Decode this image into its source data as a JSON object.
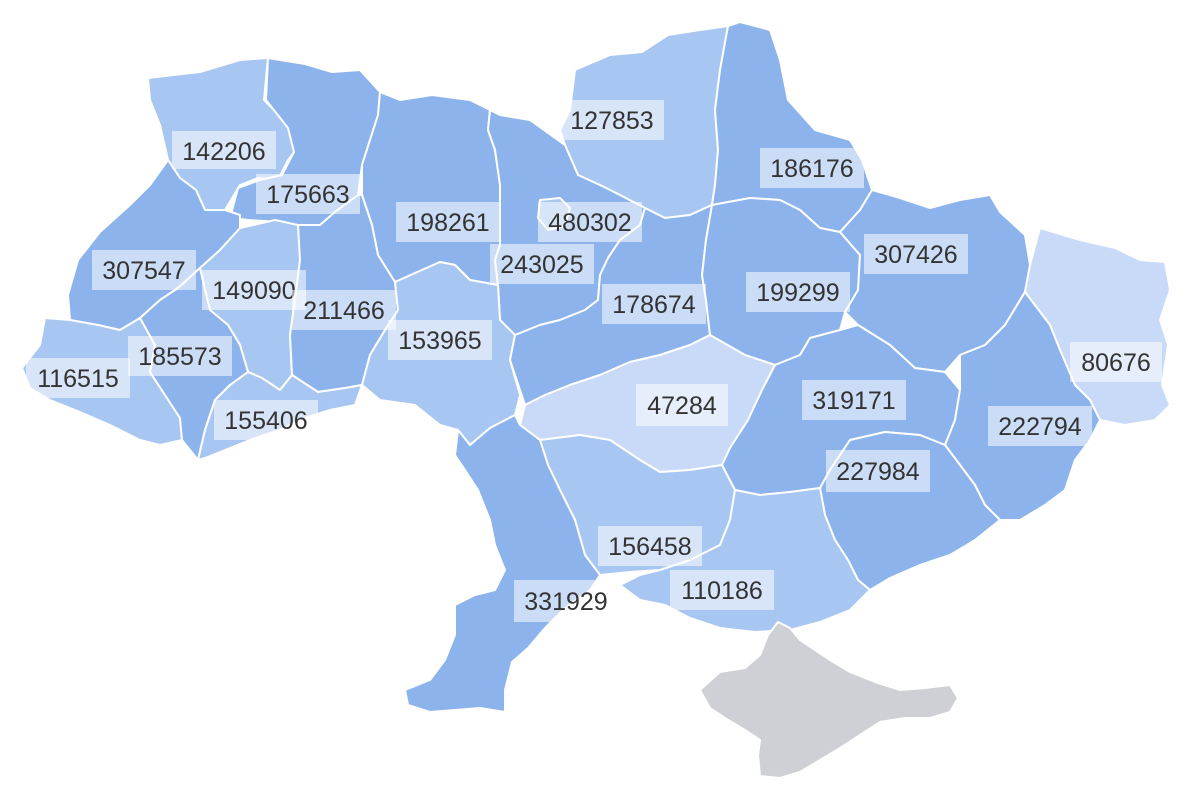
{
  "colors": {
    "dark": "#8CB3EC",
    "mid": "#A8C6F2",
    "light": "#C8DAF7",
    "no_data": "#CFCFD6",
    "border": "#FFFFFF",
    "label_text": "#333333"
  },
  "regions": [
    {
      "id": "volyn",
      "value": "142206",
      "shade": "mid"
    },
    {
      "id": "rivne",
      "value": "175663",
      "shade": "dark"
    },
    {
      "id": "zhytomyr",
      "value": "198261",
      "shade": "dark"
    },
    {
      "id": "chernihiv",
      "value": "127853",
      "shade": "mid"
    },
    {
      "id": "sumy",
      "value": "186176",
      "shade": "dark"
    },
    {
      "id": "kyiv-city",
      "value": "480302",
      "shade": "mid"
    },
    {
      "id": "kyiv-oblast",
      "value": "243025",
      "shade": "dark"
    },
    {
      "id": "lviv",
      "value": "307547",
      "shade": "dark"
    },
    {
      "id": "ternopil",
      "value": "149090",
      "shade": "mid"
    },
    {
      "id": "khmelnytskyi",
      "value": "211466",
      "shade": "dark"
    },
    {
      "id": "vinnytsia",
      "value": "153965",
      "shade": "mid"
    },
    {
      "id": "cherkasy",
      "value": "178674",
      "shade": "dark"
    },
    {
      "id": "poltava",
      "value": "199299",
      "shade": "dark"
    },
    {
      "id": "kharkiv",
      "value": "307426",
      "shade": "dark"
    },
    {
      "id": "luhansk",
      "value": "80676",
      "shade": "light"
    },
    {
      "id": "zakarpattia",
      "value": "116515",
      "shade": "mid"
    },
    {
      "id": "ivano-frankivsk",
      "value": "185573",
      "shade": "dark"
    },
    {
      "id": "chernivtsi",
      "value": "155406",
      "shade": "mid"
    },
    {
      "id": "kirovohrad",
      "value": "47284",
      "shade": "light"
    },
    {
      "id": "dnipropetrovsk",
      "value": "319171",
      "shade": "dark"
    },
    {
      "id": "donetsk",
      "value": "222794",
      "shade": "dark"
    },
    {
      "id": "zaporizhzhia",
      "value": "227984",
      "shade": "dark"
    },
    {
      "id": "mykolaiv",
      "value": "156458",
      "shade": "mid"
    },
    {
      "id": "kherson",
      "value": "110186",
      "shade": "mid"
    },
    {
      "id": "odesa",
      "value": "331929",
      "shade": "dark"
    },
    {
      "id": "crimea",
      "value": "",
      "shade": "no_data"
    }
  ]
}
